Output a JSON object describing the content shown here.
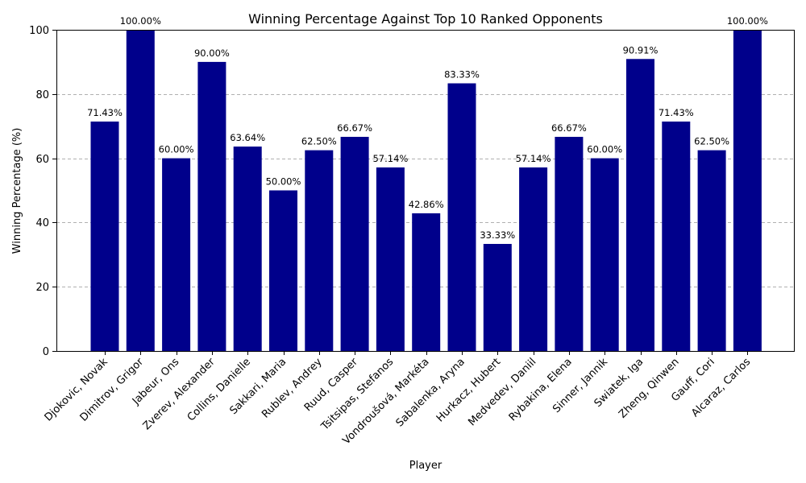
{
  "chart_data": {
    "type": "bar",
    "title": "Winning Percentage Against Top 10 Ranked Opponents",
    "xlabel": "Player",
    "ylabel": "Winning Percentage (%)",
    "ylim": [
      0,
      100
    ],
    "yticks": [
      0,
      20,
      40,
      60,
      80,
      100
    ],
    "grid": "y-dashed",
    "bar_color": "#00008b",
    "categories": [
      "Djokovic, Novak",
      "Dimitrov, Grigor",
      "Jabeur, Ons",
      "Zverev, Alexander",
      "Collins, Danielle",
      "Sakkari, Maria",
      "Rublev, Andrey",
      "Ruud, Casper",
      "Tsitsipas, Stefanos",
      "Vondroušová, Markéta",
      "Sabalenka, Aryna",
      "Hurkacz, Hubert",
      "Medvedev, Daniil",
      "Rybakina, Elena",
      "Sinner, Jannik",
      "Swiatek, Iga",
      "Zheng, Qinwen",
      "Gauff, Cori",
      "Alcaraz, Carlos"
    ],
    "values": [
      71.43,
      100.0,
      60.0,
      90.0,
      63.64,
      50.0,
      62.5,
      66.67,
      57.14,
      42.86,
      83.33,
      33.33,
      57.14,
      66.67,
      60.0,
      90.91,
      71.43,
      62.5,
      100.0
    ],
    "value_labels": [
      "71.43%",
      "100.00%",
      "60.00%",
      "90.00%",
      "63.64%",
      "50.00%",
      "62.50%",
      "66.67%",
      "57.14%",
      "42.86%",
      "83.33%",
      "33.33%",
      "57.14%",
      "66.67%",
      "60.00%",
      "90.91%",
      "71.43%",
      "62.50%",
      "100.00%"
    ]
  }
}
